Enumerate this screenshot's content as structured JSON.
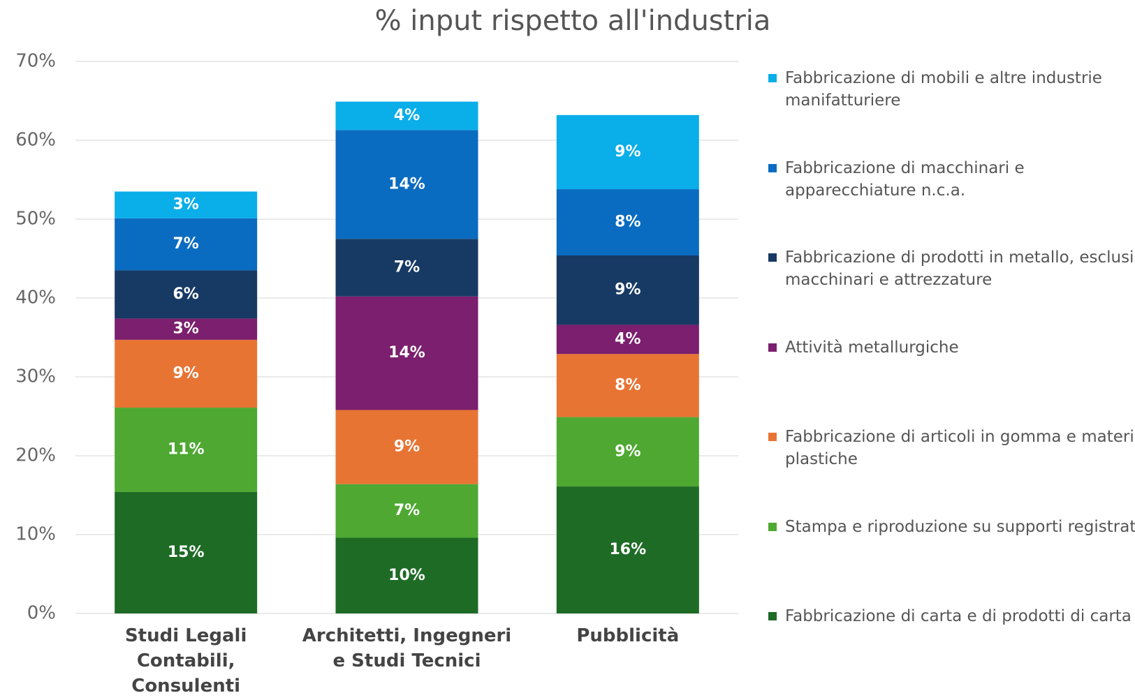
{
  "chart_data": {
    "type": "stacked_bar",
    "title": "% input rispetto all'industria",
    "categories": [
      "Studi Legali Contabili, Consulenti",
      "Architetti, Ingegneri e Studi Tecnici",
      "Pubblicità"
    ],
    "ylim": [
      0,
      70
    ],
    "yticks": [
      {
        "value": 0,
        "label": "0%"
      },
      {
        "value": 10,
        "label": "10%"
      },
      {
        "value": 20,
        "label": "20%"
      },
      {
        "value": 30,
        "label": "30%"
      },
      {
        "value": 40,
        "label": "40%"
      },
      {
        "value": 50,
        "label": "50%"
      },
      {
        "value": 60,
        "label": "60%"
      },
      {
        "value": 70,
        "label": "70%"
      }
    ],
    "grid": true,
    "legend": "right",
    "series": [
      {
        "name": "Fabbricazione di carta e di prodotti di carta",
        "color": "#1e6b25",
        "values": [
          15.4,
          9.6,
          16.1
        ],
        "value_labels": [
          "15%",
          "10%",
          "16%"
        ]
      },
      {
        "name": "Stampa e riproduzione su supporti registrati",
        "color": "#4ea832",
        "values": [
          10.7,
          6.8,
          8.8
        ],
        "value_labels": [
          "11%",
          "7%",
          "9%"
        ]
      },
      {
        "name": "Fabbricazione di articoli in gomma e materie plastiche",
        "color": "#e87434",
        "values": [
          8.6,
          9.4,
          8.0
        ],
        "value_labels": [
          "9%",
          "9%",
          "8%"
        ]
      },
      {
        "name": "Attività metallurgiche",
        "color": "#7b1f6e",
        "values": [
          2.7,
          14.4,
          3.7
        ],
        "value_labels": [
          "3%",
          "14%",
          "4%"
        ]
      },
      {
        "name": "Fabbricazione di prodotti in metallo, esclusi macchinari e attrezzature",
        "color": "#173a64",
        "values": [
          6.1,
          7.3,
          8.8
        ],
        "value_labels": [
          "6%",
          "7%",
          "9%"
        ]
      },
      {
        "name": "Fabbricazione di macchinari e apparecchiature n.c.a.",
        "color": "#0a6cc0",
        "values": [
          6.6,
          13.8,
          8.4
        ],
        "value_labels": [
          "7%",
          "14%",
          "8%"
        ]
      },
      {
        "name": "Fabbricazione di mobili e altre industrie manifatturiere",
        "color": "#0aaee8",
        "values": [
          3.4,
          3.6,
          9.4
        ],
        "value_labels": [
          "3%",
          "4%",
          "9%"
        ]
      }
    ]
  }
}
